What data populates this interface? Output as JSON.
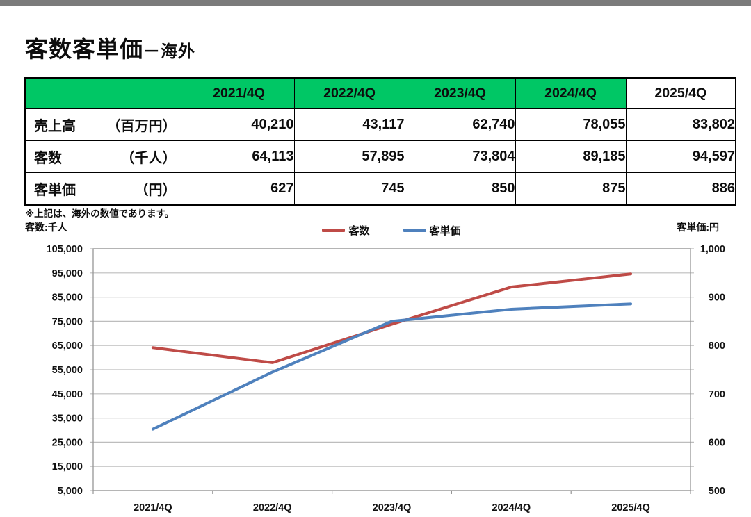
{
  "page": {
    "top_bar_color": "#7b7b7b",
    "title_main": "客数客単価",
    "title_sub": "－海外",
    "note": "※上記は、海外の数値であります。"
  },
  "table": {
    "header_bg": "#00c765",
    "columns": [
      "2021/4Q",
      "2022/4Q",
      "2023/4Q",
      "2024/4Q",
      "2025/4Q"
    ],
    "rows": [
      {
        "label": "売上高",
        "unit": "（百万円）",
        "values": [
          "40,210",
          "43,117",
          "62,740",
          "78,055",
          "83,802"
        ]
      },
      {
        "label": "客数",
        "unit": "（千人）",
        "values": [
          "64,113",
          "57,895",
          "73,804",
          "89,185",
          "94,597"
        ]
      },
      {
        "label": "客単価",
        "unit": "（円）",
        "values": [
          "627",
          "745",
          "850",
          "875",
          "886"
        ]
      }
    ]
  },
  "chart_data": {
    "type": "line",
    "categories": [
      "2021/4Q",
      "2022/4Q",
      "2023/4Q",
      "2024/4Q",
      "2025/4Q"
    ],
    "series": [
      {
        "name": "客数",
        "axis": "left",
        "color": "#bf4b47",
        "values": [
          64113,
          57895,
          73804,
          89185,
          94597
        ]
      },
      {
        "name": "客単価",
        "axis": "right",
        "color": "#4f81bd",
        "values": [
          627,
          745,
          850,
          875,
          886
        ]
      }
    ],
    "left_axis": {
      "label": "客数:千人",
      "min": 5000,
      "max": 105000,
      "tick_step": 10000,
      "ticks": [
        "105,000",
        "95,000",
        "85,000",
        "75,000",
        "65,000",
        "55,000",
        "45,000",
        "35,000",
        "25,000",
        "15,000",
        "5,000"
      ]
    },
    "right_axis": {
      "label": "客単価:円",
      "min": 500,
      "max": 1000,
      "label_step": 100,
      "ticks": [
        "1,000",
        "900",
        "800",
        "700",
        "600",
        "500"
      ]
    },
    "grid": true,
    "grid_color": "#bdbdbd",
    "border_color": "#969696",
    "legend_position": "top"
  }
}
